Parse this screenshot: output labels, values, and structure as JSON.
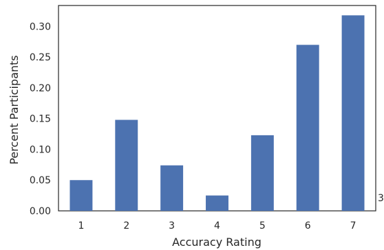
{
  "chart_data": {
    "type": "bar",
    "xlabel": "Accuracy Rating",
    "ylabel": "Percent Participants",
    "categories": [
      "1",
      "2",
      "3",
      "4",
      "5",
      "6",
      "7"
    ],
    "values": [
      0.05,
      0.148,
      0.074,
      0.025,
      0.123,
      0.27,
      0.318
    ],
    "ylim": [
      0,
      0.334
    ],
    "yticks": [
      "0.00",
      "0.05",
      "0.10",
      "0.15",
      "0.20",
      "0.25",
      "0.30"
    ],
    "grid": false,
    "legend": "none",
    "bar_color": "#4c72b0",
    "frame_color": "#262626"
  },
  "stray_glyph": "3"
}
